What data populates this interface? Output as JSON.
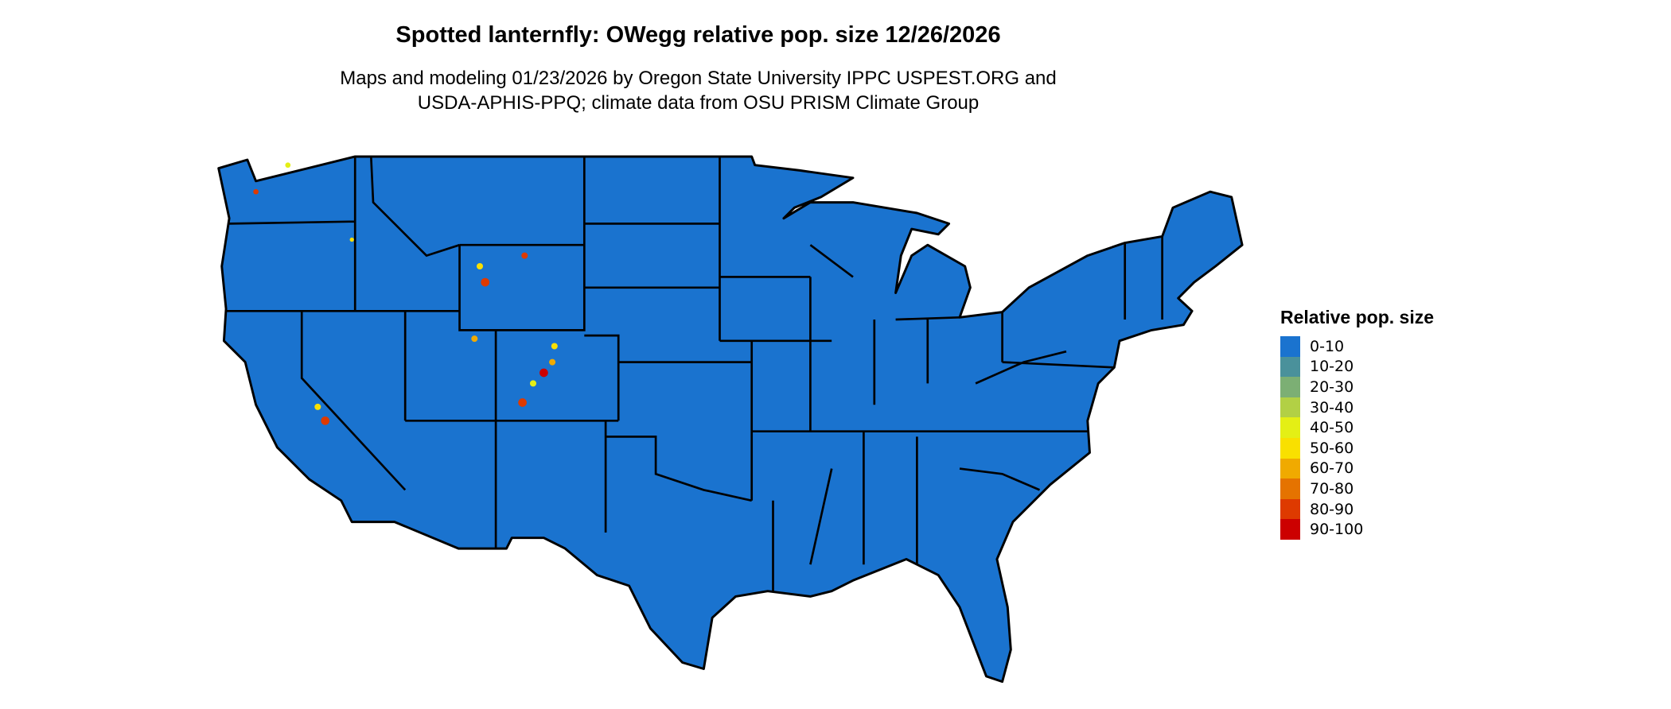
{
  "title": "Spotted lanternfly: OWegg relative pop. size 12/26/2026",
  "subtitle_line1": "Maps and modeling 01/23/2026 by Oregon State University IPPC USPEST.ORG and",
  "subtitle_line2": "USDA-APHIS-PPQ; climate data from OSU PRISM Climate Group",
  "map": {
    "region": "Conterminous United States",
    "base_color": "#1a73cf",
    "border_color": "#000000"
  },
  "legend": {
    "title": "Relative pop. size",
    "items": [
      {
        "label": "0-10",
        "color": "#1a73cf"
      },
      {
        "label": "10-20",
        "color": "#4a919b"
      },
      {
        "label": "20-30",
        "color": "#7caf74"
      },
      {
        "label": "30-40",
        "color": "#b2d045"
      },
      {
        "label": "40-50",
        "color": "#e4ef15"
      },
      {
        "label": "50-60",
        "color": "#f9e000"
      },
      {
        "label": "60-70",
        "color": "#f0aa00"
      },
      {
        "label": "70-80",
        "color": "#e57300"
      },
      {
        "label": "80-90",
        "color": "#de3a00"
      },
      {
        "label": "90-100",
        "color": "#cc0000"
      }
    ]
  }
}
